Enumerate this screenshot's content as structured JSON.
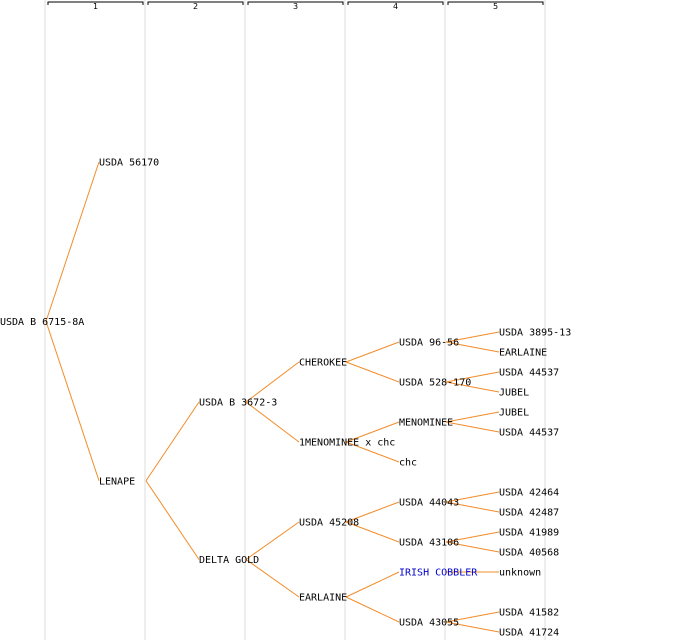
{
  "generations": [
    "1",
    "2",
    "3",
    "4",
    "5"
  ],
  "colors": {
    "edge": "#f28c28",
    "link": "#0000cc",
    "text": "#000000",
    "column_rule": "#e8e8e8"
  },
  "nodes": [
    {
      "id": "root",
      "label": "USDA B 6715-8A",
      "gen": 0
    },
    {
      "id": "usda56170",
      "label": "USDA 56170",
      "gen": 1,
      "parent": "root"
    },
    {
      "id": "lenape",
      "label": "LENAPE",
      "gen": 1,
      "parent": "root"
    },
    {
      "id": "usdaB3672",
      "label": "USDA B 3672-3",
      "gen": 2,
      "parent": "lenape"
    },
    {
      "id": "deltagold",
      "label": "DELTA GOLD",
      "gen": 2,
      "parent": "lenape"
    },
    {
      "id": "cherokee",
      "label": "CHEROKEE",
      "gen": 3,
      "parent": "usdaB3672"
    },
    {
      "id": "menominee_chc",
      "label": "1MENOMINEE x chc",
      "gen": 3,
      "parent": "usdaB3672"
    },
    {
      "id": "usda45208",
      "label": "USDA 45208",
      "gen": 3,
      "parent": "deltagold"
    },
    {
      "id": "earlaine3",
      "label": "EARLAINE",
      "gen": 3,
      "parent": "deltagold"
    },
    {
      "id": "usda9656",
      "label": "USDA 96-56",
      "gen": 4,
      "parent": "cherokee"
    },
    {
      "id": "usda528",
      "label": "USDA 528-170",
      "gen": 4,
      "parent": "cherokee"
    },
    {
      "id": "menominee",
      "label": "MENOMINEE",
      "gen": 4,
      "parent": "menominee_chc"
    },
    {
      "id": "chc",
      "label": "chc",
      "gen": 4,
      "parent": "menominee_chc"
    },
    {
      "id": "usda44043",
      "label": "USDA 44043",
      "gen": 4,
      "parent": "usda45208"
    },
    {
      "id": "usda43106",
      "label": "USDA 43106",
      "gen": 4,
      "parent": "usda45208"
    },
    {
      "id": "irish",
      "label": "IRISH COBBLER",
      "gen": 4,
      "parent": "earlaine3",
      "link": true
    },
    {
      "id": "usda43055",
      "label": "USDA 43055",
      "gen": 4,
      "parent": "earlaine3"
    },
    {
      "id": "usda3895",
      "label": "USDA 3895-13",
      "gen": 5,
      "parent": "usda9656"
    },
    {
      "id": "earlaine5",
      "label": "EARLAINE",
      "gen": 5,
      "parent": "usda9656"
    },
    {
      "id": "usda44537a",
      "label": "USDA 44537",
      "gen": 5,
      "parent": "usda528"
    },
    {
      "id": "jubel1",
      "label": "JUBEL",
      "gen": 5,
      "parent": "usda528"
    },
    {
      "id": "jubel2",
      "label": "JUBEL",
      "gen": 5,
      "parent": "menominee"
    },
    {
      "id": "usda44537b",
      "label": "USDA 44537",
      "gen": 5,
      "parent": "menominee"
    },
    {
      "id": "usda42464",
      "label": "USDA 42464",
      "gen": 5,
      "parent": "usda44043"
    },
    {
      "id": "usda42487",
      "label": "USDA 42487",
      "gen": 5,
      "parent": "usda44043"
    },
    {
      "id": "usda41989",
      "label": "USDA 41989",
      "gen": 5,
      "parent": "usda43106"
    },
    {
      "id": "usda40568",
      "label": "USDA 40568",
      "gen": 5,
      "parent": "usda43106"
    },
    {
      "id": "unknown",
      "label": "unknown",
      "gen": 5,
      "parent": "irish"
    },
    {
      "id": "usda41582",
      "label": "USDA 41582",
      "gen": 5,
      "parent": "usda43055"
    },
    {
      "id": "usda41724",
      "label": "USDA 41724",
      "gen": 5,
      "parent": "usda43055"
    }
  ]
}
